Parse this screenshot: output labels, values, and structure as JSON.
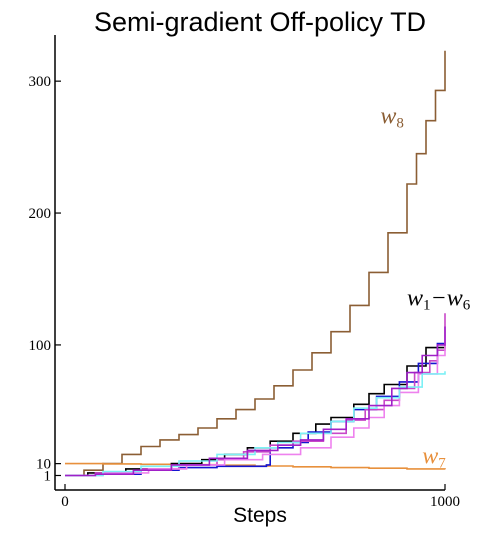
{
  "chart_data": {
    "type": "line",
    "title": "Semi-gradient Off-policy TD",
    "xlabel": "Steps",
    "ylabel": "",
    "xlim": [
      0,
      1000
    ],
    "ylim": [
      -10,
      335
    ],
    "xticks": [
      {
        "value": 0,
        "label": "0"
      },
      {
        "value": 1000,
        "label": "1000"
      }
    ],
    "yticks": [
      {
        "value": 1,
        "label": "1"
      },
      {
        "value": 10,
        "label": "10"
      },
      {
        "value": 100,
        "label": "100"
      },
      {
        "value": 200,
        "label": "200"
      },
      {
        "value": 300,
        "label": "300"
      }
    ],
    "grid": false,
    "annotations": [
      {
        "id": "w8",
        "text": "w",
        "sub": "8",
        "color": "#8b5e34",
        "anchor_x": 830,
        "anchor_y": 268
      },
      {
        "id": "w1w6",
        "text": "w",
        "sub": "1",
        "text2": "−w",
        "sub2": "6",
        "color": "#000000",
        "anchor_x": 900,
        "anchor_y": 130
      },
      {
        "id": "w7",
        "text": "w",
        "sub": "7",
        "color": "#e8903c",
        "anchor_x": 940,
        "anchor_y": 10
      }
    ],
    "series": [
      {
        "key": "w8",
        "color": "#8b5e34",
        "x": [
          0,
          50,
          100,
          150,
          200,
          250,
          300,
          350,
          400,
          450,
          500,
          550,
          600,
          650,
          700,
          750,
          800,
          850,
          900,
          925,
          950,
          975,
          1000
        ],
        "y": [
          1,
          5,
          10,
          17,
          23,
          28,
          32,
          37,
          44,
          51,
          59,
          69,
          81,
          94,
          110,
          130,
          155,
          185,
          222,
          245,
          270,
          293,
          323
        ]
      },
      {
        "key": "w7",
        "color": "#e8903c",
        "x": [
          0,
          100,
          200,
          300,
          400,
          500,
          600,
          700,
          800,
          900,
          1000
        ],
        "y": [
          10,
          9.8,
          9.5,
          9.2,
          8.8,
          8.2,
          7.6,
          7.0,
          6.5,
          6.0,
          5.6
        ]
      },
      {
        "key": "w1",
        "color": "#000000",
        "x": [
          0,
          60,
          160,
          280,
          360,
          420,
          480,
          540,
          600,
          660,
          700,
          760,
          800,
          840,
          900,
          950,
          1000
        ],
        "y": [
          1,
          3,
          6,
          10,
          13,
          17,
          22,
          27,
          33,
          40,
          45,
          55,
          63,
          70,
          84,
          98,
          100
        ]
      },
      {
        "key": "w2",
        "color": "#1515d0",
        "x": [
          0,
          80,
          200,
          300,
          400,
          530,
          540,
          600,
          640,
          700,
          760,
          820,
          880,
          930,
          980,
          1000
        ],
        "y": [
          1,
          2,
          5,
          7,
          8,
          9,
          22,
          26,
          34,
          42,
          51,
          61,
          72,
          86,
          101,
          101
        ]
      },
      {
        "key": "w3",
        "color": "#c848c8",
        "x": [
          0,
          80,
          200,
          300,
          400,
          470,
          540,
          600,
          680,
          740,
          790,
          840,
          880,
          920,
          960,
          980,
          1000
        ],
        "y": [
          1,
          3,
          6,
          9,
          13,
          19,
          24,
          27,
          33,
          43,
          51,
          58,
          67,
          79,
          88,
          96,
          124
        ]
      },
      {
        "key": "w4",
        "color": "#ee82ee",
        "x": [
          0,
          100,
          220,
          320,
          420,
          520,
          620,
          700,
          760,
          800,
          840,
          880,
          930,
          980,
          1000
        ],
        "y": [
          1,
          3,
          6,
          9,
          13,
          17,
          22,
          30,
          37,
          45,
          54,
          64,
          78,
          92,
          106
        ]
      },
      {
        "key": "w5",
        "color": "#7df0f5",
        "x": [
          0,
          100,
          200,
          300,
          400,
          500,
          560,
          620,
          700,
          760,
          820,
          880,
          940,
          1000
        ],
        "y": [
          1,
          4,
          8,
          12,
          17,
          22,
          26,
          33,
          42,
          52,
          60,
          68,
          78,
          80
        ]
      },
      {
        "key": "w6",
        "color": "#a020c8",
        "x": [
          0,
          80,
          180,
          280,
          380,
          480,
          560,
          620,
          680,
          740,
          800,
          860,
          900,
          940,
          980,
          1000
        ],
        "y": [
          1,
          2,
          5,
          9,
          14,
          20,
          24,
          28,
          36,
          44,
          54,
          67,
          79,
          92,
          100,
          114
        ]
      }
    ]
  }
}
